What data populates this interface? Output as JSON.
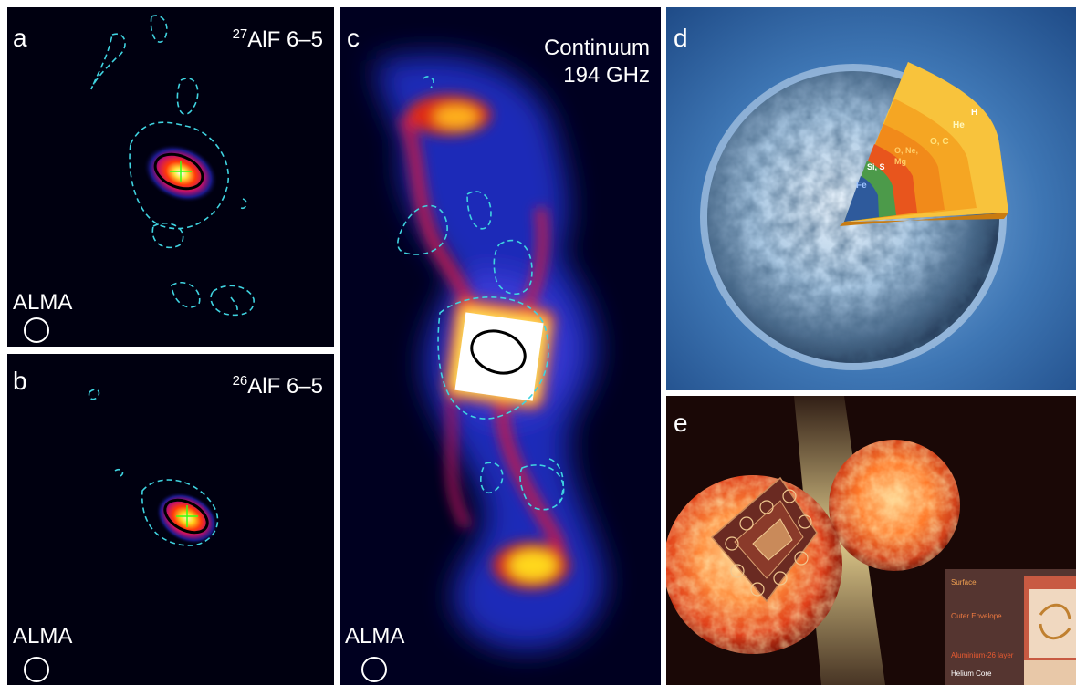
{
  "figure": {
    "panels": {
      "a": {
        "label": "a",
        "line_mass": "27",
        "line_text": "AlF 6–5",
        "instrument": "ALMA"
      },
      "b": {
        "label": "b",
        "line_mass": "26",
        "line_text": "AlF 6–5",
        "instrument": "ALMA"
      },
      "c": {
        "label": "c",
        "title_line1": "Continuum",
        "title_line2": "194 GHz",
        "instrument": "ALMA"
      },
      "d": {
        "label": "d",
        "layers": [
          "H",
          "He",
          "O, C",
          "O, Ne, Mg",
          "Si, S",
          "Fe"
        ],
        "colors": {
          "H": "#f7c23a",
          "He": "#f5a623",
          "O_C": "#f18a1a",
          "O_Ne_Mg": "#e8551d",
          "Si_S": "#4c9a4a",
          "Fe": "#2e5a9c",
          "star": "#9ec3e8"
        }
      },
      "e": {
        "label": "e",
        "inset_labels": [
          "Surface",
          "Outer Envelope",
          "Aluminium-26 layer",
          "Helium Core"
        ]
      }
    }
  }
}
